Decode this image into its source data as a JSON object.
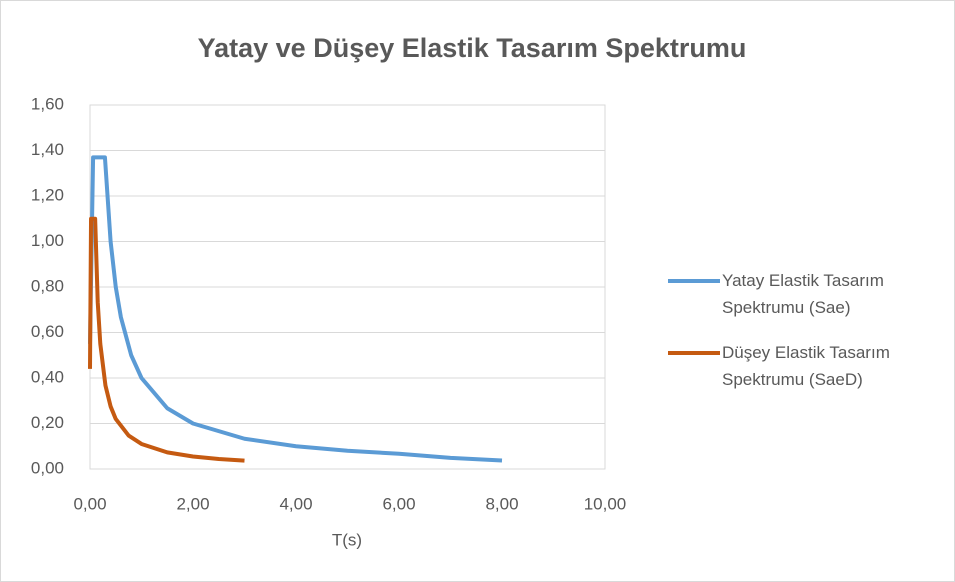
{
  "chart_data": {
    "type": "line",
    "title": "Yatay ve Düşey Elastik Tasarım Spektrumu",
    "x_label": "T(s)",
    "xlim": [
      0,
      10
    ],
    "xticks": [
      {
        "value": 0,
        "label": "0,00"
      },
      {
        "value": 2,
        "label": "2,00"
      },
      {
        "value": 4,
        "label": "4,00"
      },
      {
        "value": 6,
        "label": "6,00"
      },
      {
        "value": 8,
        "label": "8,00"
      },
      {
        "value": 10,
        "label": "10,00"
      }
    ],
    "ylim": [
      0,
      1.6
    ],
    "yticks": [
      {
        "value": 0,
        "label": "0,00"
      },
      {
        "value": 0.2,
        "label": "0,20"
      },
      {
        "value": 0.4,
        "label": "0,40"
      },
      {
        "value": 0.6,
        "label": "0,60"
      },
      {
        "value": 0.8,
        "label": "0,80"
      },
      {
        "value": 1.0,
        "label": "1,00"
      },
      {
        "value": 1.2,
        "label": "1,20"
      },
      {
        "value": 1.4,
        "label": "1,40"
      },
      {
        "value": 1.6,
        "label": "1,60"
      }
    ],
    "grid": true,
    "legend": "right",
    "series": [
      {
        "name": "Yatay Elastik Tasarım Spektrumu (Sae)",
        "color": "#5b9bd5",
        "x": [
          0,
          0.06,
          0.29,
          0.4,
          0.5,
          0.6,
          0.8,
          1.0,
          1.5,
          2,
          3,
          4,
          5,
          6,
          7,
          8
        ],
        "values": [
          0.55,
          1.37,
          1.37,
          1.0,
          0.8,
          0.667,
          0.5,
          0.4,
          0.267,
          0.2,
          0.133,
          0.1,
          0.08,
          0.067,
          0.049,
          0.0375
        ]
      },
      {
        "name": "Düşey Elastik Tasarım Spektrumu (SaeD)",
        "color": "#c55a11",
        "x": [
          0,
          0.02,
          0.1,
          0.15,
          0.2,
          0.3,
          0.4,
          0.5,
          0.75,
          1,
          1.5,
          2,
          2.5,
          3
        ],
        "values": [
          0.44,
          1.1,
          1.1,
          0.733,
          0.55,
          0.367,
          0.275,
          0.22,
          0.147,
          0.11,
          0.073,
          0.055,
          0.044,
          0.037
        ]
      }
    ]
  }
}
